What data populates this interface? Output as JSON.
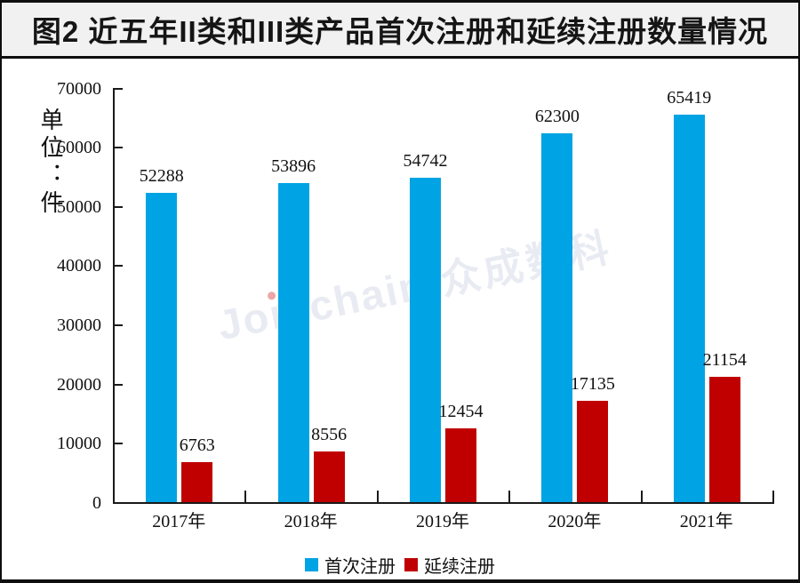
{
  "title": "图2  近五年II类和III类产品首次注册和延续注册数量情况",
  "unit_label": "单位：件",
  "watermark": {
    "latin_prefix": "Jo",
    "latin_dotless_i": "ı",
    "latin_suffix": "nchain",
    "reg_mark": "®",
    "cjk": "众成数科"
  },
  "colors": {
    "first_registration": "#00a3e4",
    "renewal_registration": "#c00000",
    "axis": "#1a1a1a",
    "title_background": "#f1f1f1",
    "frame_border": "#0e0e0e",
    "watermark": "#e9ebf3",
    "watermark_dot": "#eda6a6"
  },
  "chart_data": {
    "type": "bar",
    "title": "图2  近五年II类和III类产品首次注册和延续注册数量情况",
    "categories": [
      "2017年",
      "2018年",
      "2019年",
      "2020年",
      "2021年"
    ],
    "series": [
      {
        "name": "首次注册",
        "color": "#00a3e4",
        "values": [
          52288,
          53896,
          54742,
          62300,
          65419
        ]
      },
      {
        "name": "延续注册",
        "color": "#c00000",
        "values": [
          6763,
          8556,
          12454,
          17135,
          21154
        ]
      }
    ],
    "xlabel": "",
    "ylabel": "单位：件",
    "ylim": [
      0,
      70000
    ],
    "yticks": [
      0,
      10000,
      20000,
      30000,
      40000,
      50000,
      60000,
      70000
    ],
    "grid": false,
    "legend_position": "bottom",
    "data_labels": true
  }
}
